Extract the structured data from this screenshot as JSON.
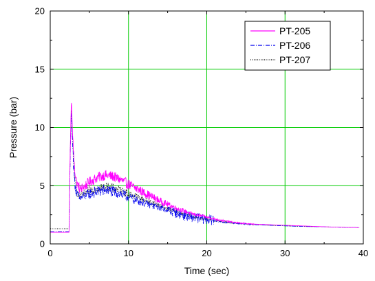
{
  "chart_data": {
    "type": "line",
    "title": "",
    "xlabel": "Time (sec)",
    "ylabel": "Pressure (bar)",
    "xlim": [
      0,
      40
    ],
    "ylim": [
      0,
      20
    ],
    "xticks": [
      0,
      10,
      20,
      30,
      40
    ],
    "yticks": [
      0,
      5,
      10,
      15,
      20
    ],
    "grid": true,
    "grid_color": "#00cc00",
    "legend_position": "top-right",
    "series": [
      {
        "name": "PT-205",
        "color": "#ff00ff",
        "style": "solid",
        "noise": 0.45,
        "points": [
          [
            0,
            1.0
          ],
          [
            2.4,
            1.0
          ],
          [
            2.55,
            8.0
          ],
          [
            2.7,
            12.5
          ],
          [
            2.85,
            9.5
          ],
          [
            3.1,
            6.5
          ],
          [
            3.4,
            5.2
          ],
          [
            3.8,
            4.7
          ],
          [
            4.3,
            4.9
          ],
          [
            5,
            5.3
          ],
          [
            6,
            5.7
          ],
          [
            7,
            5.9
          ],
          [
            8,
            5.8
          ],
          [
            9,
            5.5
          ],
          [
            10,
            5.1
          ],
          [
            12,
            4.4
          ],
          [
            14,
            3.7
          ],
          [
            16,
            3.1
          ],
          [
            18,
            2.6
          ],
          [
            20,
            2.3
          ],
          [
            22,
            2.0
          ],
          [
            24,
            1.8
          ],
          [
            26,
            1.7
          ],
          [
            28,
            1.65
          ],
          [
            30,
            1.6
          ],
          [
            32,
            1.55
          ],
          [
            34,
            1.5
          ],
          [
            36,
            1.45
          ],
          [
            38,
            1.42
          ],
          [
            39.5,
            1.4
          ]
        ]
      },
      {
        "name": "PT-206",
        "color": "#0000ee",
        "style": "dashdot",
        "noise": 0.55,
        "points": [
          [
            0,
            1.05
          ],
          [
            2.4,
            1.05
          ],
          [
            2.55,
            7.5
          ],
          [
            2.7,
            11.6
          ],
          [
            2.85,
            8.5
          ],
          [
            3.1,
            5.5
          ],
          [
            3.4,
            4.2
          ],
          [
            3.8,
            3.9
          ],
          [
            4.3,
            4.1
          ],
          [
            5,
            4.3
          ],
          [
            6,
            4.5
          ],
          [
            7,
            4.6
          ],
          [
            8,
            4.5
          ],
          [
            9,
            4.3
          ],
          [
            10,
            4.0
          ],
          [
            12,
            3.5
          ],
          [
            14,
            3.1
          ],
          [
            16,
            2.7
          ],
          [
            18,
            2.3
          ],
          [
            20,
            2.1
          ],
          [
            22,
            1.9
          ],
          [
            24,
            1.75
          ],
          [
            26,
            1.65
          ],
          [
            28,
            1.6
          ],
          [
            30,
            1.55
          ],
          [
            32,
            1.5
          ],
          [
            34,
            1.48
          ],
          [
            36,
            1.45
          ],
          [
            38,
            1.42
          ],
          [
            39.5,
            1.4
          ]
        ]
      },
      {
        "name": "PT-207",
        "color": "#000000",
        "style": "dotted",
        "noise": 0.4,
        "points": [
          [
            0,
            1.3
          ],
          [
            2.4,
            1.3
          ],
          [
            2.55,
            7.8
          ],
          [
            2.7,
            11.9
          ],
          [
            2.85,
            8.8
          ],
          [
            3.1,
            5.8
          ],
          [
            3.4,
            4.4
          ],
          [
            3.8,
            4.1
          ],
          [
            4.3,
            4.3
          ],
          [
            5,
            4.6
          ],
          [
            6,
            4.8
          ],
          [
            7,
            4.9
          ],
          [
            8,
            4.8
          ],
          [
            9,
            4.6
          ],
          [
            10,
            4.3
          ],
          [
            12,
            3.8
          ],
          [
            14,
            3.3
          ],
          [
            16,
            2.8
          ],
          [
            18,
            2.4
          ],
          [
            20,
            2.1
          ],
          [
            22,
            1.9
          ],
          [
            24,
            1.75
          ],
          [
            26,
            1.65
          ],
          [
            28,
            1.6
          ],
          [
            30,
            1.55
          ],
          [
            32,
            1.5
          ],
          [
            34,
            1.48
          ],
          [
            36,
            1.45
          ],
          [
            38,
            1.42
          ],
          [
            39.5,
            1.4
          ]
        ]
      }
    ]
  }
}
